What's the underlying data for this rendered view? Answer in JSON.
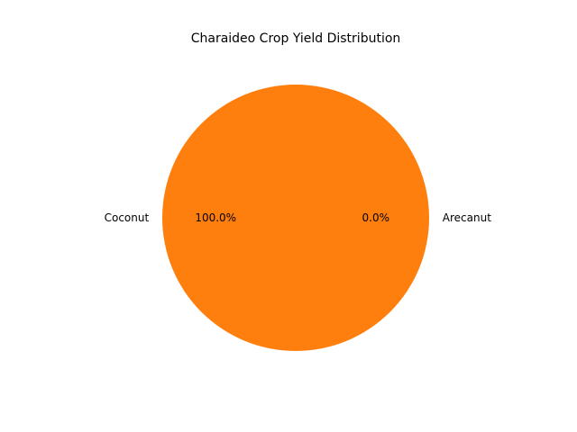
{
  "chart_data": {
    "type": "pie",
    "title": "Charaideo Crop Yield Distribution",
    "categories": [
      "Arecanut",
      "Coconut"
    ],
    "values": [
      0.0,
      100.0
    ],
    "percent_labels": [
      "0.0%",
      "100.0%"
    ],
    "colors": [
      "#1f77b4",
      "#ff7f0e"
    ],
    "start_angle_deg": 0,
    "direction": "counterclockwise",
    "legend": "none"
  }
}
